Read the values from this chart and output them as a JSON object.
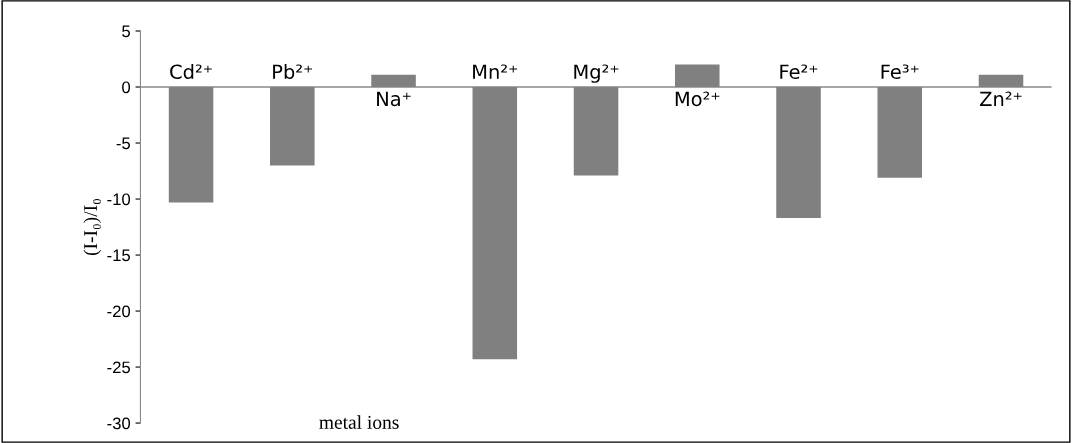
{
  "chart_data": {
    "type": "bar",
    "xlabel": "metal ions",
    "ylabel": "(I-I₀)/I₀",
    "categories": [
      "Cd²⁺",
      "Pb²⁺",
      "Na⁺",
      "Mn²⁺",
      "Mg²⁺",
      "Mo²⁺",
      "Fe²⁺",
      "Fe³⁺",
      "Zn²⁺"
    ],
    "values": [
      -10.3,
      -7,
      1.1,
      -24.3,
      -7.9,
      2,
      -11.7,
      -8.1,
      1.1
    ],
    "color": "#808080",
    "ylim": [
      -30,
      5
    ],
    "yticks": [
      -30,
      -25,
      -20,
      -15,
      -10,
      -5,
      0,
      5
    ],
    "grid": false,
    "legend": false
  }
}
